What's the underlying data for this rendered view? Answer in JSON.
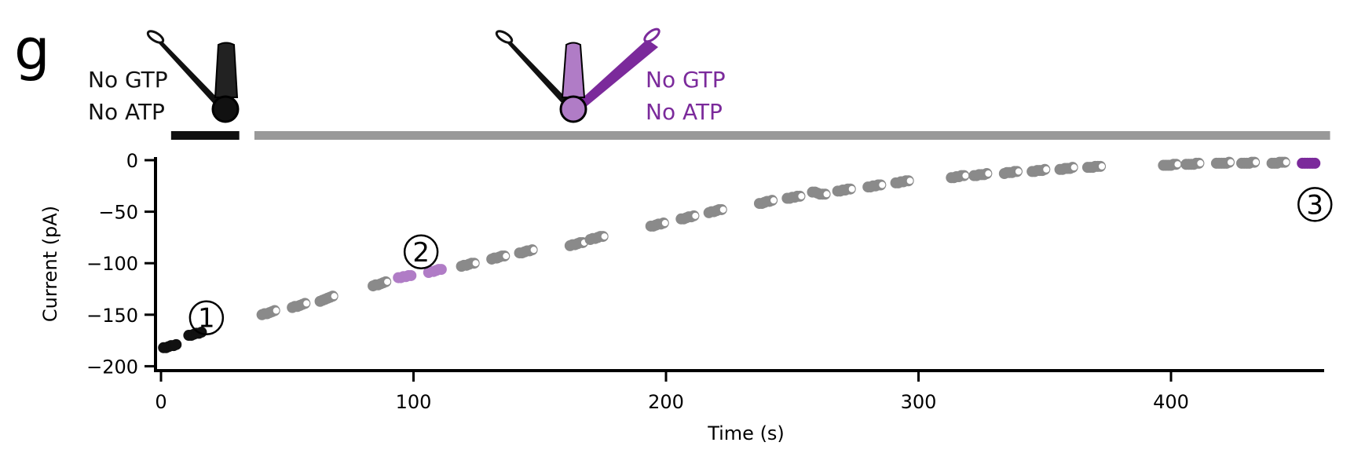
{
  "panel_letter": "g",
  "colors": {
    "baseline": "#111111",
    "recording": "#8a8a8a",
    "highlight": "#b07cc6",
    "final": "#7b2a9b",
    "condition_bar_1": "#111111",
    "condition_bar_2": "#999999"
  },
  "annotations": {
    "pipette_1": {
      "line1": "No GTP",
      "line2": "No ATP",
      "color": "#111111"
    },
    "pipette_2": {
      "line1": "No GTP",
      "line2": "No ATP",
      "color": "#7b2a9b"
    }
  },
  "markers": [
    {
      "label": "1",
      "x": 18,
      "y": -153
    },
    {
      "label": "2",
      "x": 103,
      "y": -89
    },
    {
      "label": "3",
      "x": 457,
      "y": -43
    }
  ],
  "chart_data": {
    "type": "scatter",
    "xlabel": "Time (s)",
    "ylabel": "Current (pA)",
    "xlim": [
      -2,
      463
    ],
    "ylim": [
      -205,
      0
    ],
    "xticks": [
      0,
      100,
      200,
      300,
      400
    ],
    "yticks": [
      0,
      -50,
      -100,
      -150,
      -200
    ],
    "condition_bars": [
      {
        "x0": 4,
        "x1": 31,
        "color": "#111111"
      },
      {
        "x0": 37,
        "x1": 463,
        "color": "#999999"
      }
    ],
    "series": [
      {
        "x": [
          1,
          2,
          3,
          4,
          5,
          6
        ],
        "y": [
          -182,
          -182,
          -181,
          -180,
          -180,
          -179
        ],
        "color": "#111111",
        "style": "filled"
      },
      {
        "x": [
          11,
          12,
          13,
          14,
          15,
          16
        ],
        "y": [
          -170,
          -170,
          -169,
          -168,
          -168,
          -167
        ],
        "color": "#111111",
        "style": "filled"
      },
      {
        "x": [
          40,
          41,
          42,
          43,
          44,
          45
        ],
        "y": [
          -150,
          -149,
          -149,
          -148,
          -147,
          -146
        ],
        "color": "#8a8a8a",
        "style": "open"
      },
      {
        "x": [
          52,
          53,
          54,
          55,
          56,
          57
        ],
        "y": [
          -143,
          -142,
          -142,
          -141,
          -140,
          -139
        ],
        "color": "#8a8a8a",
        "style": "open"
      },
      {
        "x": [
          63,
          64,
          65,
          66,
          67,
          68
        ],
        "y": [
          -137,
          -136,
          -135,
          -134,
          -133,
          -132
        ],
        "color": "#8a8a8a",
        "style": "open"
      },
      {
        "x": [
          84,
          85,
          86,
          87,
          88,
          89
        ],
        "y": [
          -122,
          -121,
          -121,
          -120,
          -119,
          -118
        ],
        "color": "#8a8a8a",
        "style": "open"
      },
      {
        "x": [
          94,
          95,
          96,
          97,
          98,
          99
        ],
        "y": [
          -114,
          -114,
          -113,
          -113,
          -112,
          -112
        ],
        "color": "#b07cc6",
        "style": "filled"
      },
      {
        "x": [
          106,
          107,
          108,
          109,
          110,
          111
        ],
        "y": [
          -109,
          -108,
          -108,
          -107,
          -106,
          -106
        ],
        "color": "#b07cc6",
        "style": "filled"
      },
      {
        "x": [
          119,
          120,
          121,
          122,
          123,
          124
        ],
        "y": [
          -103,
          -102,
          -102,
          -101,
          -100,
          -100
        ],
        "color": "#8a8a8a",
        "style": "open"
      },
      {
        "x": [
          131,
          132,
          133,
          134,
          135,
          136
        ],
        "y": [
          -96,
          -95,
          -95,
          -94,
          -93,
          -93
        ],
        "color": "#8a8a8a",
        "style": "open"
      },
      {
        "x": [
          142,
          143,
          144,
          145,
          146,
          147
        ],
        "y": [
          -90,
          -90,
          -89,
          -88,
          -88,
          -87
        ],
        "color": "#8a8a8a",
        "style": "open"
      },
      {
        "x": [
          162,
          163,
          164,
          165,
          166,
          167
        ],
        "y": [
          -83,
          -82,
          -82,
          -81,
          -80,
          -80
        ],
        "color": "#8a8a8a",
        "style": "open"
      },
      {
        "x": [
          170,
          171,
          172,
          173,
          174,
          175
        ],
        "y": [
          -77,
          -76,
          -76,
          -75,
          -74,
          -74
        ],
        "color": "#8a8a8a",
        "style": "open"
      },
      {
        "x": [
          194,
          195,
          196,
          197,
          198,
          199
        ],
        "y": [
          -64,
          -64,
          -63,
          -62,
          -62,
          -61
        ],
        "color": "#8a8a8a",
        "style": "open"
      },
      {
        "x": [
          206,
          207,
          208,
          209,
          210,
          211
        ],
        "y": [
          -57,
          -57,
          -56,
          -55,
          -55,
          -54
        ],
        "color": "#8a8a8a",
        "style": "open"
      },
      {
        "x": [
          217,
          218,
          219,
          220,
          221,
          222
        ],
        "y": [
          -51,
          -50,
          -50,
          -49,
          -48,
          -48
        ],
        "color": "#8a8a8a",
        "style": "open"
      },
      {
        "x": [
          237,
          238,
          239,
          240,
          241,
          242
        ],
        "y": [
          -42,
          -42,
          -41,
          -40,
          -40,
          -39
        ],
        "color": "#8a8a8a",
        "style": "open"
      },
      {
        "x": [
          248,
          249,
          250,
          251,
          252,
          253
        ],
        "y": [
          -37,
          -37,
          -36,
          -36,
          -35,
          -35
        ],
        "color": "#8a8a8a",
        "style": "open"
      },
      {
        "x": [
          258,
          259,
          260,
          261,
          262,
          263
        ],
        "y": [
          -31,
          -31,
          -32,
          -33,
          -33,
          -33
        ],
        "color": "#8a8a8a",
        "style": "open"
      },
      {
        "x": [
          268,
          269,
          270,
          271,
          272,
          273
        ],
        "y": [
          -30,
          -30,
          -29,
          -29,
          -28,
          -28
        ],
        "color": "#8a8a8a",
        "style": "open"
      },
      {
        "x": [
          280,
          281,
          282,
          283,
          284,
          285
        ],
        "y": [
          -26,
          -26,
          -25,
          -25,
          -24,
          -24
        ],
        "color": "#8a8a8a",
        "style": "open"
      },
      {
        "x": [
          291,
          292,
          293,
          294,
          295,
          296
        ],
        "y": [
          -22,
          -22,
          -21,
          -21,
          -20,
          -20
        ],
        "color": "#8a8a8a",
        "style": "open"
      },
      {
        "x": [
          313,
          314,
          315,
          316,
          317,
          318
        ],
        "y": [
          -17,
          -17,
          -16,
          -16,
          -15,
          -15
        ],
        "color": "#8a8a8a",
        "style": "open"
      },
      {
        "x": [
          322,
          323,
          324,
          325,
          326,
          327
        ],
        "y": [
          -15,
          -15,
          -14,
          -14,
          -14,
          -13
        ],
        "color": "#8a8a8a",
        "style": "open"
      },
      {
        "x": [
          334,
          335,
          336,
          337,
          338,
          339
        ],
        "y": [
          -13,
          -12,
          -12,
          -12,
          -11,
          -11
        ],
        "color": "#8a8a8a",
        "style": "open"
      },
      {
        "x": [
          345,
          346,
          347,
          348,
          349,
          350
        ],
        "y": [
          -11,
          -11,
          -10,
          -10,
          -10,
          -9
        ],
        "color": "#8a8a8a",
        "style": "open"
      },
      {
        "x": [
          356,
          357,
          358,
          359,
          360,
          361
        ],
        "y": [
          -9,
          -9,
          -8,
          -8,
          -8,
          -7
        ],
        "color": "#8a8a8a",
        "style": "open"
      },
      {
        "x": [
          367,
          368,
          369,
          370,
          371,
          372
        ],
        "y": [
          -7,
          -7,
          -7,
          -6,
          -6,
          -6
        ],
        "color": "#8a8a8a",
        "style": "open"
      },
      {
        "x": [
          397,
          398,
          399,
          400,
          401,
          402
        ],
        "y": [
          -5,
          -5,
          -5,
          -5,
          -4,
          -4
        ],
        "color": "#8a8a8a",
        "style": "open"
      },
      {
        "x": [
          406,
          407,
          408,
          409,
          410,
          411
        ],
        "y": [
          -4,
          -4,
          -4,
          -4,
          -3,
          -3
        ],
        "color": "#8a8a8a",
        "style": "open"
      },
      {
        "x": [
          418,
          419,
          420,
          421,
          422,
          423
        ],
        "y": [
          -3,
          -3,
          -3,
          -3,
          -3,
          -2
        ],
        "color": "#8a8a8a",
        "style": "open"
      },
      {
        "x": [
          428,
          429,
          430,
          431,
          432,
          433
        ],
        "y": [
          -3,
          -3,
          -3,
          -3,
          -2,
          -2
        ],
        "color": "#8a8a8a",
        "style": "open"
      },
      {
        "x": [
          440,
          441,
          442,
          443,
          444,
          445
        ],
        "y": [
          -3,
          -3,
          -3,
          -2,
          -2,
          -2
        ],
        "color": "#8a8a8a",
        "style": "open"
      },
      {
        "x": [
          452,
          453,
          454,
          455,
          456,
          457
        ],
        "y": [
          -3,
          -3,
          -3,
          -3,
          -3,
          -3
        ],
        "color": "#7b2a9b",
        "style": "filled"
      }
    ]
  }
}
